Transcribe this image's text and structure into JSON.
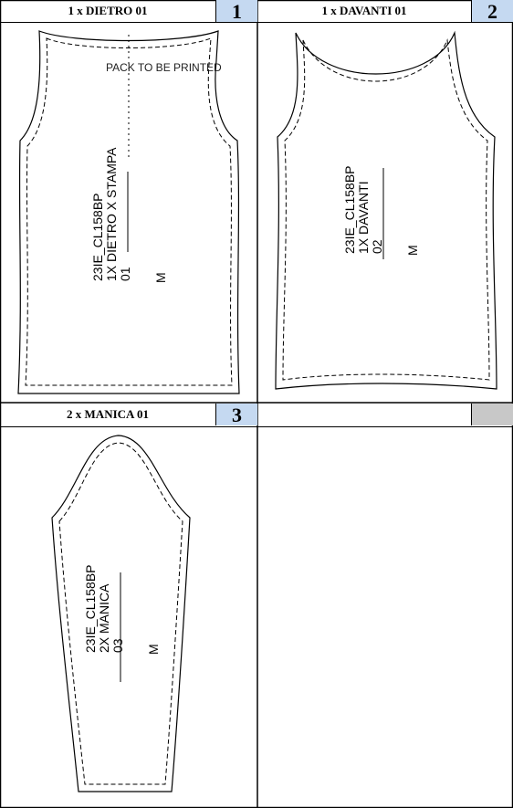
{
  "colors": {
    "badge": "#c5d9f1",
    "badge_empty": "#c8c8c8",
    "line": "#000000"
  },
  "pieces": [
    {
      "title": "1 x DIETRO 01",
      "number": "1",
      "note": "PACK TO BE PRINTED",
      "label": [
        "23IE_CL158BP",
        "1X DIETRO X STAMPA",
        "01"
      ],
      "size": "M"
    },
    {
      "title": "1 x DAVANTI 01",
      "number": "2",
      "label": [
        "23IE_CL158BP",
        "1X DAVANTI",
        "02"
      ],
      "size": "M"
    },
    {
      "title": "2 x MANICA 01",
      "number": "3",
      "label": [
        "23IE_CL158BP",
        "2X MANICA",
        "03"
      ],
      "size": "M"
    },
    {
      "title": "",
      "number": ""
    }
  ]
}
